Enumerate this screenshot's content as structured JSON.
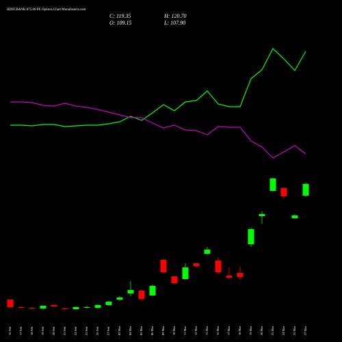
{
  "chart_data": {
    "type": "candlestick",
    "title": "HDFCBANK 875.00 PE Options Chart Munafasutra.com",
    "ohlc_labels": {
      "close": "C: 119.35",
      "high": "H: 120.70",
      "open": "O: 109.15",
      "low": "L: 107.90"
    },
    "categories": [
      "16 Feb",
      "17 Feb",
      "18 Feb",
      "19 Feb",
      "20 Feb",
      "23 Feb",
      "24 Feb",
      "25 Feb",
      "26 Feb",
      "27 Feb",
      "02 Mar",
      "04 Mar",
      "05 Mar",
      "06 Mar",
      "09 Mar",
      "10 Mar",
      "11 Mar",
      "12 Mar",
      "13 Mar",
      "16 Mar",
      "17 Mar",
      "18 Mar",
      "19 Mar",
      "20 Mar",
      "23 Mar",
      "24 Mar",
      "25 Mar",
      "27 Mar"
    ],
    "open": [
      17.95,
      11.35,
      10.75,
      10.15,
      13.15,
      10.15,
      9.55,
      10.75,
      10.75,
      13.15,
      17.95,
      23.35,
      25.75,
      21.55,
      52.75,
      38.35,
      35.95,
      49.75,
      58.15,
      52.15,
      38.95,
      41.35,
      66.55,
      91.15,
      113.35,
      115.75,
      89.35,
      109.15
    ],
    "high": [
      18.55,
      11.95,
      11.35,
      12.55,
      13.75,
      10.75,
      11.95,
      12.55,
      13.75,
      16.75,
      20.95,
      34.15,
      26.95,
      31.15,
      53.95,
      38.95,
      49.75,
      50.35,
      64.15,
      55.15,
      46.15,
      46.75,
      80.95,
      95.35,
      124.75,
      116.35,
      92.95,
      120.7
    ],
    "low": [
      10.75,
      10.15,
      9.55,
      9.55,
      11.35,
      8.95,
      8.95,
      9.95,
      10.15,
      12.55,
      16.75,
      20.95,
      16.75,
      20.95,
      40.75,
      31.15,
      35.35,
      45.55,
      57.55,
      40.15,
      35.95,
      35.35,
      64.15,
      84.55,
      112.75,
      106.75,
      88.75,
      107.9
    ],
    "close": [
      11.35,
      10.75,
      10.15,
      12.55,
      11.95,
      9.55,
      11.35,
      11.35,
      13.15,
      16.15,
      19.75,
      26.35,
      18.55,
      29.95,
      41.95,
      32.35,
      46.15,
      47.35,
      61.75,
      41.95,
      37.15,
      37.75,
      79.75,
      92.95,
      124.15,
      108.55,
      91.75,
      119.35
    ],
    "up_color": "#00ff00",
    "down_color": "#ff0000",
    "series": [
      {
        "color": "#00ff00",
        "values": [
          170.95,
          170.95,
          170.35,
          171.55,
          171.55,
          169.75,
          170.35,
          170.95,
          170.95,
          172.15,
          173.95,
          178.75,
          175.15,
          181.75,
          188.95,
          183.55,
          191.35,
          192.55,
          200.95,
          189.55,
          187.15,
          187.15,
          211.75,
          219.55,
          238.15,
          229.15,
          218.95,
          235.75
        ]
      },
      {
        "color": "#cc00cc",
        "values": [
          191.35,
          191.35,
          190.75,
          188.35,
          187.75,
          190.15,
          187.75,
          186.55,
          184.75,
          182.35,
          179.95,
          177.55,
          177.55,
          172.75,
          168.55,
          170.95,
          166.75,
          166.15,
          162.55,
          169.75,
          169.15,
          169.15,
          157.15,
          151.75,
          142.15,
          147.55,
          152.95,
          145.75
        ]
      }
    ],
    "ylim": [
      -19.25,
      280.75
    ]
  }
}
